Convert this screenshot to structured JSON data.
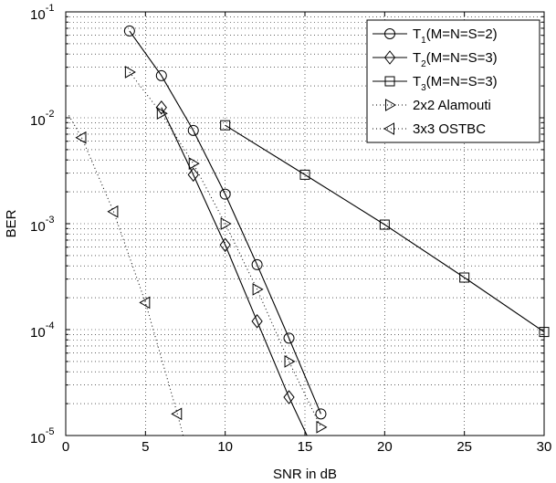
{
  "chart_data": {
    "type": "line",
    "xlabel": "SNR in dB",
    "ylabel": "BER",
    "xlim": [
      0,
      30
    ],
    "ylim": [
      1e-05,
      0.1
    ],
    "yscale": "log",
    "grid": true,
    "grid_style": "dotted",
    "legend_position": "top-right",
    "x_ticks": [
      0,
      5,
      10,
      15,
      20,
      25,
      30
    ],
    "x_tick_labels": [
      "0",
      "5",
      "10",
      "15",
      "20",
      "25",
      "30"
    ],
    "y_ticks": [
      1e-05,
      0.0001,
      0.001,
      0.01,
      0.1
    ],
    "y_tick_labels": [
      {
        "base": "10",
        "exp": "-5"
      },
      {
        "base": "10",
        "exp": "-4"
      },
      {
        "base": "10",
        "exp": "-3"
      },
      {
        "base": "10",
        "exp": "-2"
      },
      {
        "base": "10",
        "exp": "-1"
      }
    ],
    "series": [
      {
        "name": "T1(M=N=S=2)",
        "legend_main": "T",
        "legend_sub": "1",
        "legend_rest": "(M=N=S=2)",
        "marker": "circle",
        "line": "solid",
        "x": [
          4,
          6,
          8,
          10,
          12,
          14,
          16
        ],
        "y": [
          0.066,
          0.025,
          0.0076,
          0.0019,
          0.00041,
          8.3e-05,
          1.6e-05
        ]
      },
      {
        "name": "T2(M=N=S=3)",
        "legend_main": "T",
        "legend_sub": "2",
        "legend_rest": "(M=N=S=3)",
        "marker": "diamond",
        "line": "solid",
        "x": [
          6,
          8,
          10,
          12,
          14
        ],
        "y": [
          0.0125,
          0.0029,
          0.00063,
          0.00012,
          2.3e-05
        ],
        "line_to": [
          15.2,
          9.5e-06
        ]
      },
      {
        "name": "T3(M=N=S=3)",
        "legend_main": "T",
        "legend_sub": "3",
        "legend_rest": "(M=N=S=3)",
        "marker": "square",
        "line": "solid",
        "x": [
          10,
          15,
          20,
          25,
          30
        ],
        "y": [
          0.0085,
          0.0029,
          0.00098,
          0.00031,
          9.5e-05
        ]
      },
      {
        "name": "2x2 Alamouti",
        "legend_main": "2x2 Alamouti",
        "marker": "triangle-right",
        "line": "dotted",
        "x": [
          4,
          6,
          8,
          10,
          12,
          14,
          16
        ],
        "y": [
          0.027,
          0.011,
          0.0037,
          0.001,
          0.00024,
          5e-05,
          1.2e-05
        ]
      },
      {
        "name": "3x3 OSTBC",
        "legend_main": "3x3 OSTBC",
        "marker": "triangle-left",
        "line": "dotted",
        "x": [
          1,
          3,
          5,
          7
        ],
        "y": [
          0.0065,
          0.0013,
          0.00018,
          1.6e-05
        ],
        "line_from": [
          0.2,
          0.0105
        ],
        "line_to": [
          7.4,
          9.5e-06
        ]
      }
    ]
  }
}
